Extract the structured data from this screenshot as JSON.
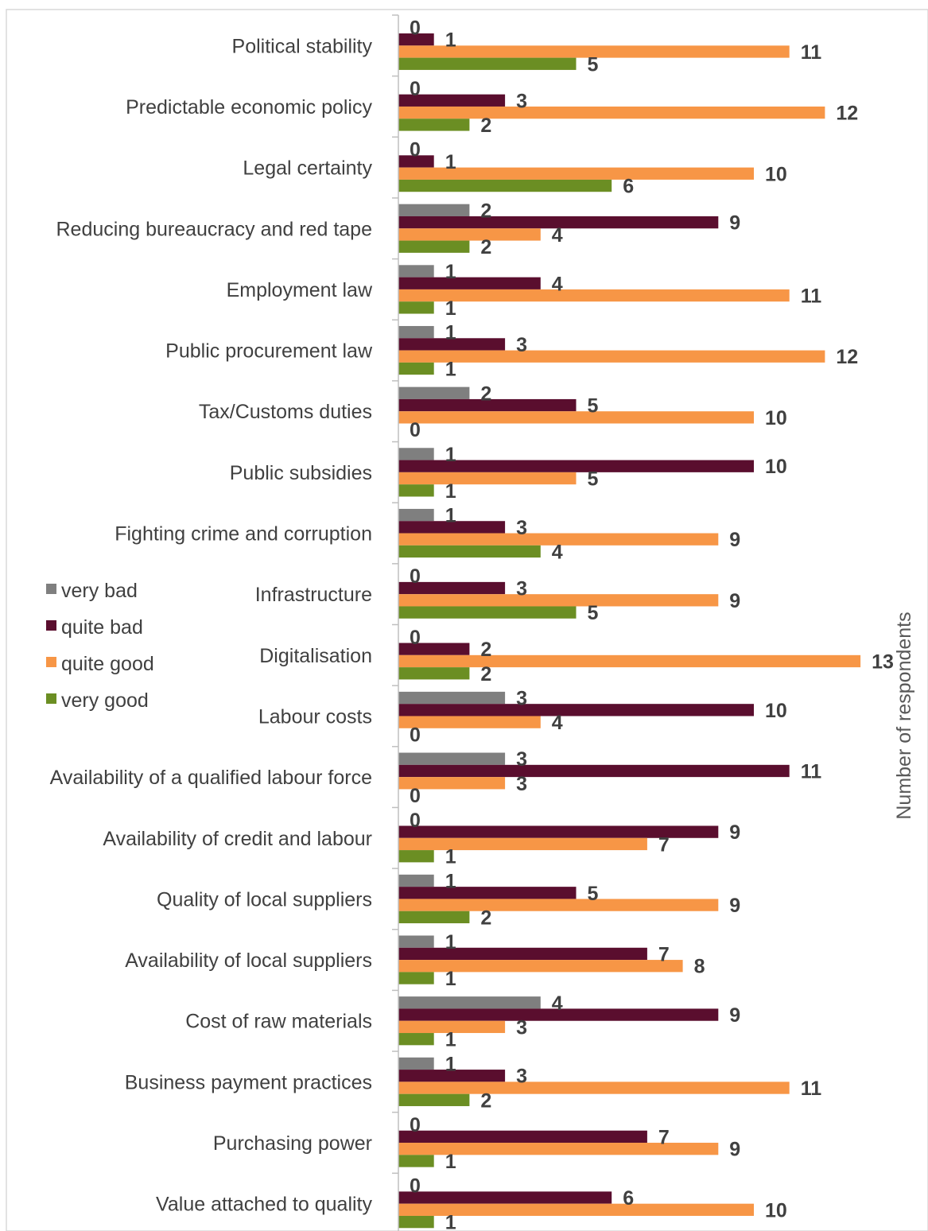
{
  "chart_data": {
    "type": "bar",
    "orientation": "horizontal",
    "categories": [
      "Political stability",
      "Predictable economic policy",
      "Legal certainty",
      "Reducing bureaucracy and red tape",
      "Employment law",
      "Public procurement law",
      "Tax/Customs duties",
      "Public subsidies",
      "Fighting crime and corruption",
      "Infrastructure",
      "Digitalisation",
      "Labour costs",
      "Availability of a qualified labour force",
      "Availability of credit and labour",
      "Quality of local suppliers",
      "Availability of local suppliers",
      "Cost of raw materials",
      "Business payment practices",
      "Purchasing power",
      "Value attached to quality"
    ],
    "series": [
      {
        "name": "very bad",
        "color": "#7f7f7f",
        "values": [
          0,
          0,
          0,
          2,
          1,
          1,
          2,
          1,
          1,
          0,
          0,
          3,
          3,
          0,
          1,
          1,
          4,
          1,
          0,
          0
        ]
      },
      {
        "name": "quite bad",
        "color": "#5a0e2e",
        "values": [
          1,
          3,
          1,
          9,
          4,
          3,
          5,
          10,
          3,
          3,
          2,
          10,
          11,
          9,
          5,
          7,
          9,
          3,
          7,
          6
        ]
      },
      {
        "name": "quite good",
        "color": "#f79646",
        "values": [
          11,
          12,
          10,
          4,
          11,
          12,
          10,
          5,
          9,
          9,
          13,
          4,
          3,
          7,
          9,
          8,
          3,
          11,
          9,
          10
        ]
      },
      {
        "name": "very good",
        "color": "#6b8e23",
        "values": [
          5,
          2,
          6,
          2,
          1,
          1,
          0,
          1,
          4,
          5,
          2,
          0,
          0,
          1,
          2,
          1,
          1,
          2,
          1,
          1
        ]
      }
    ],
    "xlabel": "Number of respondents",
    "xlim": [
      0,
      13
    ],
    "grid": false,
    "legend": "left-middle"
  }
}
